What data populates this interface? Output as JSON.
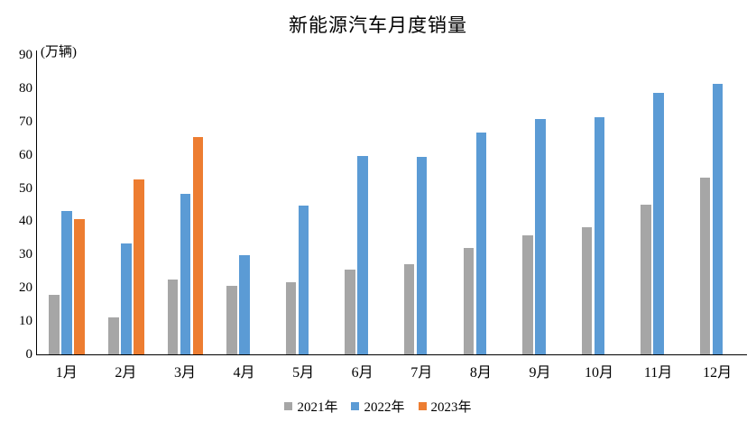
{
  "chart_data": {
    "type": "bar",
    "title": "新能源汽车月度销量",
    "y_unit": "(万辆)",
    "xlabel": "",
    "ylabel": "万辆",
    "ylim": [
      0,
      90
    ],
    "ytick_step": 10,
    "grid": false,
    "legend_position": "bottom",
    "categories": [
      "1月",
      "2月",
      "3月",
      "4月",
      "5月",
      "6月",
      "7月",
      "8月",
      "9月",
      "10月",
      "11月",
      "12月"
    ],
    "series": [
      {
        "name": "2021年",
        "color": "#A6A6A6",
        "values": [
          17.9,
          11.0,
          22.6,
          20.6,
          21.7,
          25.6,
          27.1,
          32.1,
          35.7,
          38.3,
          45.0,
          53.1
        ]
      },
      {
        "name": "2022年",
        "color": "#5B9BD5",
        "values": [
          43.1,
          33.4,
          48.4,
          29.9,
          44.7,
          59.6,
          59.3,
          66.6,
          70.8,
          71.4,
          78.6,
          81.4
        ]
      },
      {
        "name": "2023年",
        "color": "#ED7D31",
        "values": [
          40.8,
          52.5,
          65.3,
          null,
          null,
          null,
          null,
          null,
          null,
          null,
          null,
          null
        ]
      }
    ]
  }
}
